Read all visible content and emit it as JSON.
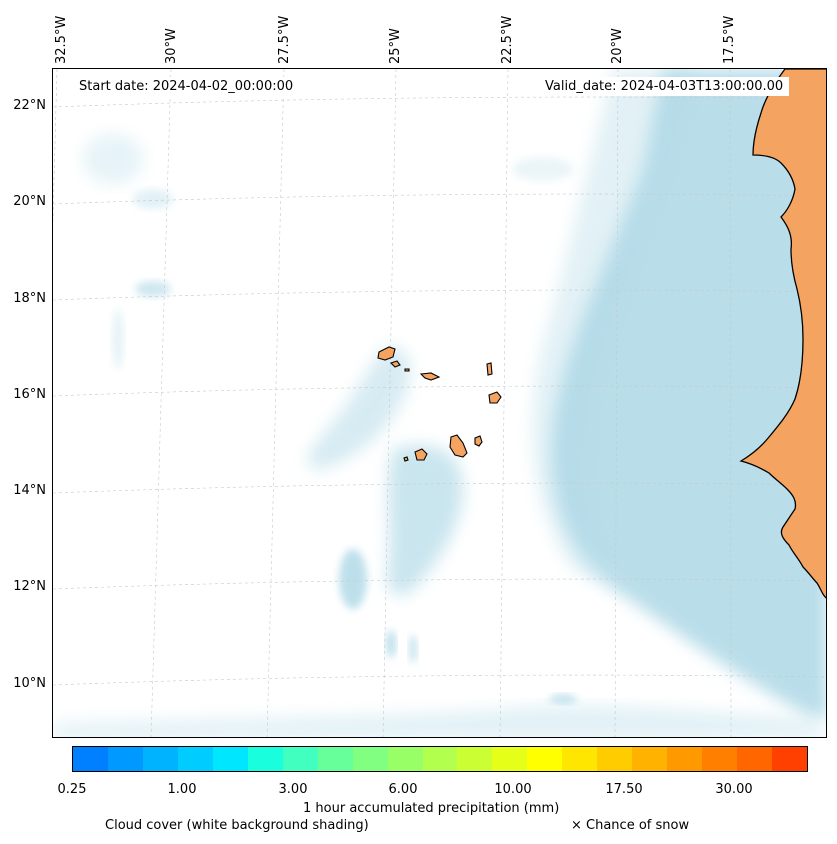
{
  "info": {
    "start_date": "Start date: 2024-04-02_00:00:00",
    "valid_date": "Valid_date: 2024-04-03T13:00:00.00"
  },
  "axes": {
    "lat_labels": [
      "22°N",
      "20°N",
      "18°N",
      "16°N",
      "14°N",
      "12°N",
      "10°N"
    ],
    "lon_labels": [
      "32.5°W",
      "30°W",
      "27.5°W",
      "25°W",
      "22.5°W",
      "20°W",
      "17.5°W"
    ]
  },
  "colorbar": {
    "label": "1 hour accumulated precipitation (mm)",
    "tick_labels": [
      "0.25",
      "1.00",
      "3.00",
      "6.00",
      "10.00",
      "17.50",
      "30.00"
    ],
    "colors": [
      "#0080ff",
      "#0099ff",
      "#00b3ff",
      "#00ccff",
      "#00e6ff",
      "#19ffdd",
      "#40ffbf",
      "#66ff99",
      "#80ff80",
      "#99ff66",
      "#b3ff4d",
      "#ccff33",
      "#e6ff19",
      "#ffff00",
      "#ffe600",
      "#ffcc00",
      "#ffb300",
      "#ff9900",
      "#ff8000",
      "#ff6600",
      "#ff4000"
    ]
  },
  "legend": {
    "cloud_cover": "Cloud cover (white background shading)",
    "snow": "× Chance of snow"
  },
  "colors": {
    "land": "#f4a460",
    "cloud": "#add8e6",
    "grid": "#c8c8c8"
  }
}
